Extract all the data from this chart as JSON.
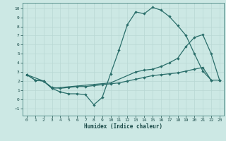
{
  "xlabel": "Humidex (Indice chaleur)",
  "bg_color": "#cce8e4",
  "grid_color": "#b8d8d4",
  "line_color": "#2a6e6a",
  "xlim": [
    -0.5,
    23.5
  ],
  "ylim": [
    -1.8,
    10.6
  ],
  "xticks": [
    0,
    1,
    2,
    3,
    4,
    5,
    6,
    7,
    8,
    9,
    10,
    11,
    12,
    13,
    14,
    15,
    16,
    17,
    18,
    19,
    20,
    21,
    22,
    23
  ],
  "yticks": [
    -1,
    0,
    1,
    2,
    3,
    4,
    5,
    6,
    7,
    8,
    9,
    10
  ],
  "line1": {
    "x": [
      0,
      1,
      2,
      3,
      4,
      5,
      6,
      7,
      8,
      9,
      10,
      11,
      12,
      13,
      14,
      15,
      16,
      17,
      18,
      19,
      20,
      21,
      22
    ],
    "y": [
      2.7,
      2.1,
      2.0,
      1.2,
      0.8,
      0.6,
      0.6,
      0.5,
      -0.6,
      0.2,
      2.8,
      5.4,
      8.2,
      9.6,
      9.4,
      10.1,
      9.8,
      9.1,
      8.1,
      7.0,
      5.0,
      3.1,
      2.1
    ]
  },
  "line2": {
    "x": [
      0,
      2,
      3,
      10,
      13,
      14,
      15,
      16,
      17,
      18,
      19,
      20,
      21,
      22,
      23
    ],
    "y": [
      2.7,
      2.0,
      1.2,
      1.8,
      3.0,
      3.2,
      3.3,
      3.6,
      4.0,
      4.5,
      5.8,
      6.8,
      7.1,
      5.0,
      2.1
    ]
  },
  "line3": {
    "x": [
      0,
      1,
      2,
      3,
      4,
      5,
      6,
      7,
      8,
      9,
      10,
      11,
      12,
      13,
      14,
      15,
      16,
      17,
      18,
      19,
      20,
      21,
      22,
      23
    ],
    "y": [
      2.7,
      2.1,
      2.0,
      1.3,
      1.2,
      1.3,
      1.4,
      1.4,
      1.5,
      1.6,
      1.7,
      1.8,
      2.0,
      2.2,
      2.4,
      2.6,
      2.7,
      2.8,
      2.9,
      3.1,
      3.3,
      3.5,
      2.1,
      2.1
    ]
  },
  "markersize": 2.2,
  "linewidth": 0.9
}
